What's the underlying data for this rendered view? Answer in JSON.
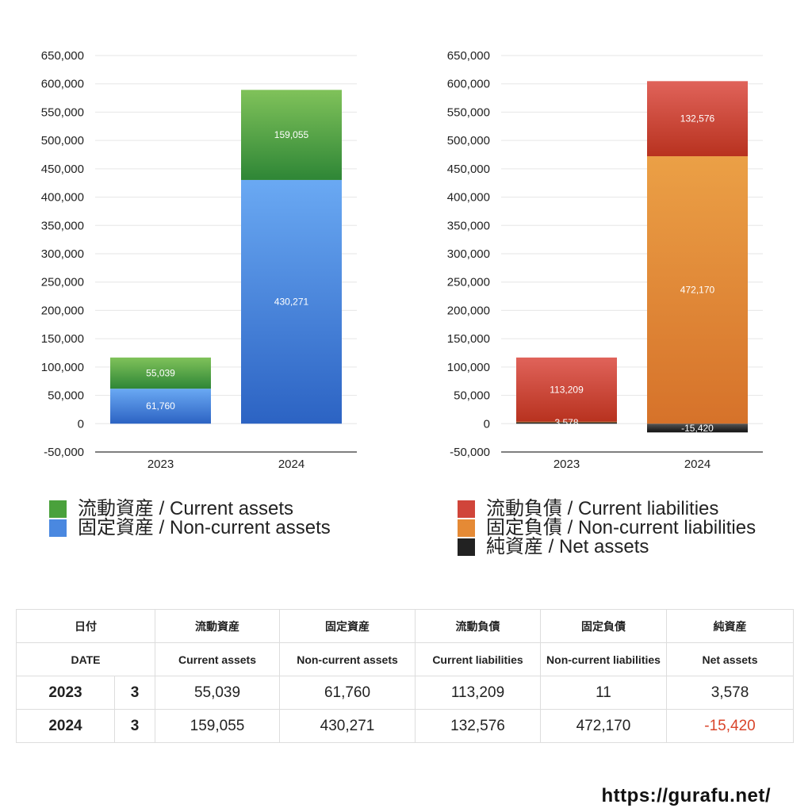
{
  "chart_data": [
    {
      "type": "bar",
      "stacked": true,
      "categories": [
        "2023",
        "2024"
      ],
      "ylim": [
        -50000,
        650000
      ],
      "yticks": [
        -50000,
        0,
        50000,
        100000,
        150000,
        200000,
        250000,
        300000,
        350000,
        400000,
        450000,
        500000,
        550000,
        600000,
        650000
      ],
      "grid": true,
      "legend_placement": "bottom",
      "series": [
        {
          "name": "固定資産 / Non-current assets",
          "values": [
            61760,
            430271
          ],
          "color_top": "#6aa9f3",
          "color_bottom": "#2c63c3"
        },
        {
          "name": "流動資産 / Current assets",
          "values": [
            55039,
            159055
          ],
          "color_top": "#80c25a",
          "color_bottom": "#2e8636"
        }
      ],
      "legend": [
        {
          "label": "流動資産 / Current assets",
          "color": "#4aa13c"
        },
        {
          "label": "固定資産 / Non-current assets",
          "color": "#4a88e0"
        }
      ]
    },
    {
      "type": "bar",
      "stacked": true,
      "categories": [
        "2023",
        "2024"
      ],
      "ylim": [
        -50000,
        650000
      ],
      "yticks": [
        -50000,
        0,
        50000,
        100000,
        150000,
        200000,
        250000,
        300000,
        350000,
        400000,
        450000,
        500000,
        550000,
        600000,
        650000
      ],
      "grid": true,
      "legend_placement": "bottom",
      "series": [
        {
          "name": "純資産 / Net assets",
          "values": [
            3578,
            -15420
          ],
          "color_top": "#555555",
          "color_bottom": "#111111"
        },
        {
          "name": "固定負債 / Non-current liabilities",
          "values": [
            11,
            472170
          ],
          "color_top": "#eba046",
          "color_bottom": "#d6722a"
        },
        {
          "name": "流動負債 / Current liabilities",
          "values": [
            113209,
            132576
          ],
          "color_top": "#e0635a",
          "color_bottom": "#b8321f"
        }
      ],
      "legend": [
        {
          "label": "流動負債 / Current liabilities",
          "color": "#d0453a"
        },
        {
          "label": "固定負債 / Non-current liabilities",
          "color": "#e58a35"
        },
        {
          "label": "純資産 / Net assets",
          "color": "#222222"
        }
      ]
    }
  ],
  "table": {
    "header_jp": [
      "日付",
      "流動資産",
      "固定資産",
      "流動負債",
      "固定負債",
      "純資産"
    ],
    "header_en": [
      "DATE",
      "Current assets",
      "Non-current assets",
      "Current liabilities",
      "Non-current liabilities",
      "Net assets"
    ],
    "rows": [
      {
        "year": "2023",
        "month": "3",
        "values": [
          "55,039",
          "61,760",
          "113,209",
          "11",
          "3,578"
        ]
      },
      {
        "year": "2024",
        "month": "3",
        "values": [
          "159,055",
          "430,271",
          "132,576",
          "472,170",
          "-15,420"
        ]
      }
    ]
  },
  "footer": "https://gurafu.net/"
}
